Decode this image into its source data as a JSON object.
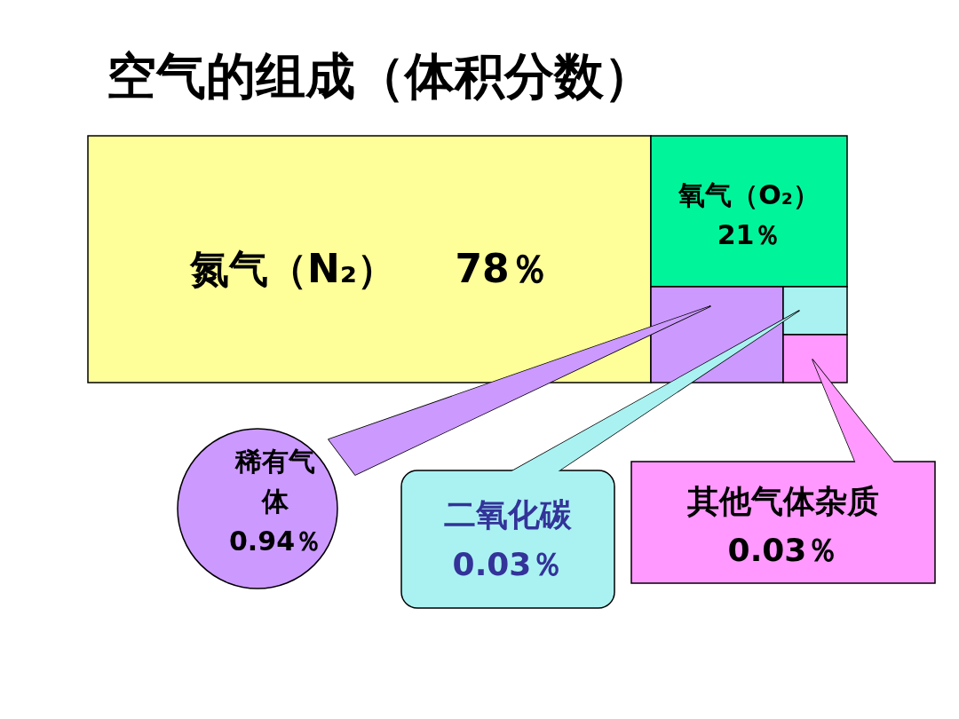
{
  "chart_data": {
    "type": "other",
    "title": "空气的组成（体积分数）",
    "categories": [
      "氮气（N₂）",
      "氧气（O₂）",
      "稀有气体",
      "二氧化碳",
      "其他气体杂质"
    ],
    "values": [
      78,
      21,
      0.94,
      0.03,
      0.03
    ],
    "value_labels": [
      "78％",
      "21％",
      "0.94％",
      "0.03％",
      "0.03％"
    ],
    "colors": [
      "#ffff99",
      "#00f59b",
      "#cc99ff",
      "#aaf2f2",
      "#ff99ff"
    ]
  }
}
